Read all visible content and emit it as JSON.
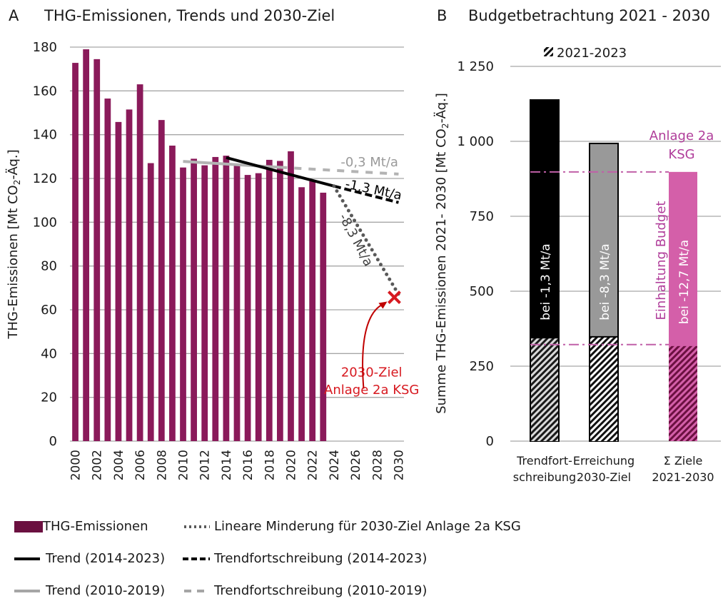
{
  "chart_data": [
    {
      "type": "bar",
      "panel": "A",
      "title": "THG-Emissionen, Trends und 2030-Ziel",
      "xlabel": "",
      "ylabel": "THG-Emissionen  [Mt CO2-Äq.]",
      "ylabel_parts": {
        "pre": "THG-Emissionen  [Mt CO",
        "sub": "2",
        "post": "-Äq.]"
      },
      "ylim": [
        0,
        180
      ],
      "yticks": [
        0,
        20,
        40,
        60,
        80,
        100,
        120,
        140,
        160,
        180
      ],
      "xlim": [
        2000,
        2030
      ],
      "xticks": [
        2000,
        2002,
        2004,
        2006,
        2008,
        2010,
        2012,
        2014,
        2016,
        2018,
        2020,
        2022,
        2024,
        2026,
        2028,
        2030
      ],
      "grid": true,
      "bar_color": "#8a1a5a",
      "series": [
        {
          "name": "THG-Emissionen",
          "kind": "bar",
          "x": [
            2000,
            2001,
            2002,
            2003,
            2004,
            2005,
            2006,
            2007,
            2008,
            2009,
            2010,
            2011,
            2012,
            2013,
            2014,
            2015,
            2016,
            2017,
            2018,
            2019,
            2020,
            2021,
            2022,
            2023
          ],
          "values": [
            172.8,
            179.0,
            174.5,
            156.5,
            145.8,
            151.5,
            163.0,
            127.0,
            146.7,
            135.0,
            125.0,
            129.0,
            126.0,
            129.8,
            130.4,
            126.0,
            121.6,
            122.4,
            128.5,
            128.0,
            132.4,
            116.0,
            118.7,
            113.5
          ]
        },
        {
          "name": "Trend (2010-2019)",
          "kind": "line",
          "style": "solid",
          "color": "#b3b3b3",
          "x": [
            2010,
            2019
          ],
          "values": [
            127.8,
            125.1
          ]
        },
        {
          "name": "Trendfortschreibung (2010-2019)",
          "kind": "line",
          "style": "dashed",
          "color": "#b3b3b3",
          "x": [
            2019,
            2030
          ],
          "values": [
            125.1,
            122.0
          ]
        },
        {
          "name": "Trend (2014-2023)",
          "kind": "line",
          "style": "solid",
          "color": "#000000",
          "x": [
            2014,
            2024
          ],
          "values": [
            129.5,
            116.5
          ]
        },
        {
          "name": "Trendfortschreibung (2014-2023)",
          "kind": "line",
          "style": "dashed",
          "color": "#000000",
          "x": [
            2024,
            2030
          ],
          "values": [
            116.5,
            109.0
          ]
        },
        {
          "name": "Lineare Minderung für 2030-Ziel Anlage 2a KSG",
          "kind": "line",
          "style": "dotted",
          "color": "#595959",
          "x": [
            2024,
            2030
          ],
          "values": [
            116.5,
            67.0
          ]
        }
      ],
      "annotations": [
        {
          "text": "-0,3 Mt/a",
          "color": "#9a9a9a",
          "x": 2027.3,
          "y": 125.5
        },
        {
          "text": "-1,3 Mt/a",
          "color": "#000000",
          "x": 2027.6,
          "y": 113.0,
          "rotate": 12
        },
        {
          "text": "-8,3 Mt/a",
          "color": "#404040",
          "x": 2025.7,
          "y": 91.0,
          "rotate": 62
        },
        {
          "text": "2030-Ziel",
          "color": "#d71920",
          "x": 2027.5,
          "y": 29.5
        },
        {
          "text": "Anlage 2a KSG",
          "color": "#d71920",
          "x": 2027.5,
          "y": 21.5
        }
      ],
      "target_marker": {
        "label": "2030-Ziel Anlage 2a KSG",
        "x": 2030,
        "y": 67.0,
        "color": "#d71920",
        "symbol": "x"
      }
    },
    {
      "type": "bar",
      "panel": "B",
      "title": "Budgetbetrachtung 2021 - 2030",
      "ylabel": "Summe THG-Emissionen  2021- 2030 [Mt CO2-Äq.]",
      "ylabel_parts": {
        "pre": "Summe THG-Emissionen  2021- 2030 [Mt CO",
        "sub": "2",
        "post": "-Äq.]"
      },
      "ylim": [
        0,
        1250
      ],
      "yticks": [
        0,
        250,
        500,
        750,
        1000,
        1250
      ],
      "ytick_labels": [
        "0",
        "250",
        "500",
        "750",
        "1 000",
        "1 250"
      ],
      "grid": true,
      "legend": {
        "label": "2021-2023",
        "pattern": "hatched",
        "position": "top"
      },
      "categories": [
        {
          "line1": "Trendfort-",
          "line2": "schreibung"
        },
        {
          "line1": "Erreichung",
          "line2": "2030-Ziel"
        },
        {
          "line1": "Σ Ziele",
          "line2": "2021-2030"
        }
      ],
      "series": [
        {
          "name": "2021-2023",
          "pattern": "hatched",
          "values": [
            345,
            348,
            317
          ]
        },
        {
          "name": "Summe 2021-2030",
          "values": [
            1138,
            993,
            898
          ],
          "colors": [
            "#000000",
            "#999999",
            "#d45fa9"
          ],
          "labels": [
            "bei -1,3 Mt/a",
            "bei -8,3 Mt/a",
            "bei -12,7 Mt/a"
          ]
        }
      ],
      "reference_lines": [
        {
          "name": "Anlage 2a KSG budget",
          "y": 898,
          "style": "dashdot",
          "color": "#c060a8"
        },
        {
          "name": "Anlage 2a KSG 2021-2023",
          "y": 322,
          "style": "dashdot",
          "color": "#c060a8"
        }
      ],
      "annotations": [
        {
          "text": "Anlage 2a",
          "color": "#b03d9a"
        },
        {
          "text": "KSG",
          "color": "#b03d9a"
        },
        {
          "text": "Einhaltung Budget",
          "color": "#b03d9a",
          "rotate": -90
        }
      ]
    }
  ],
  "panels": {
    "a_letter": "A",
    "a_title": "THG-Emissionen, Trends und 2030-Ziel",
    "b_letter": "B",
    "b_title": "Budgetbetrachtung 2021 - 2030"
  },
  "legend": {
    "items": [
      {
        "label": "THG-Emissionen",
        "style": "box",
        "color": "#6b1040"
      },
      {
        "label": "Lineare Minderung für 2030-Ziel Anlage 2a KSG",
        "style": "dotted",
        "color": "#595959"
      },
      {
        "label": "Trend (2014-2023)",
        "style": "solid",
        "color": "#000000"
      },
      {
        "label": "Trendfortschreibung (2014-2023)",
        "style": "dashed",
        "color": "#000000"
      },
      {
        "label": "Trend (2010-2019)",
        "style": "solid",
        "color": "#a6a6a6"
      },
      {
        "label": "Trendfortschreibung (2010-2019)",
        "style": "dashed",
        "color": "#a6a6a6"
      }
    ]
  }
}
